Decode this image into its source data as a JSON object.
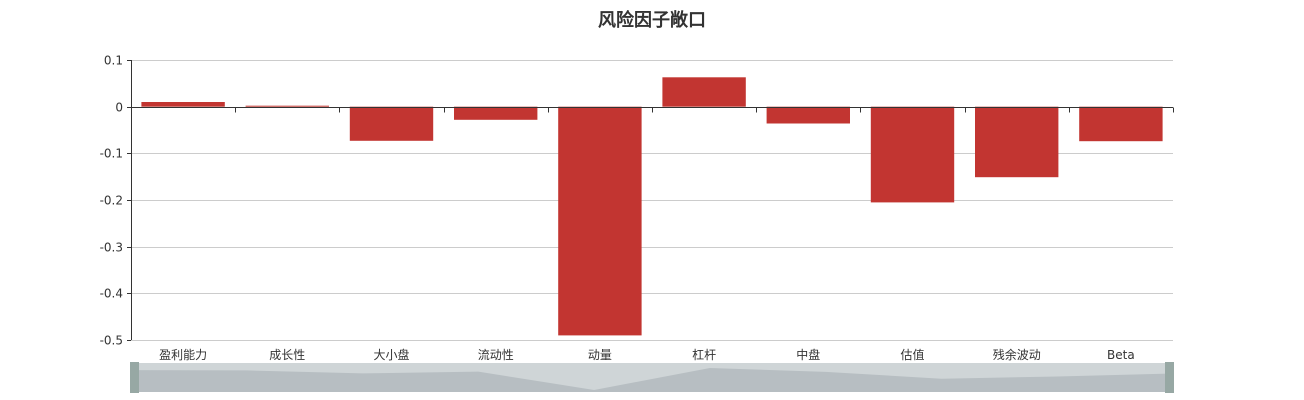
{
  "chart_data": {
    "type": "bar",
    "title": "风险因子敞口",
    "categories": [
      "盈利能力",
      "成长性",
      "大小盘",
      "流动性",
      "动量",
      "杠杆",
      "中盘",
      "估值",
      "残余波动",
      "Beta"
    ],
    "series": [
      {
        "values": [
          0.01,
          0.002,
          -0.073,
          -0.028,
          -0.49,
          0.063,
          -0.036,
          -0.205,
          -0.151,
          -0.074
        ]
      }
    ],
    "ylim": [
      -0.5,
      0.1
    ],
    "yticks": [
      0.1,
      0,
      -0.1,
      -0.2,
      -0.3,
      -0.4,
      -0.5
    ],
    "grid": true,
    "legend": "none",
    "data_zoom": true,
    "colors": {
      "bar": "#c23531",
      "axis": "#333333",
      "grid": "#cccccc"
    }
  }
}
